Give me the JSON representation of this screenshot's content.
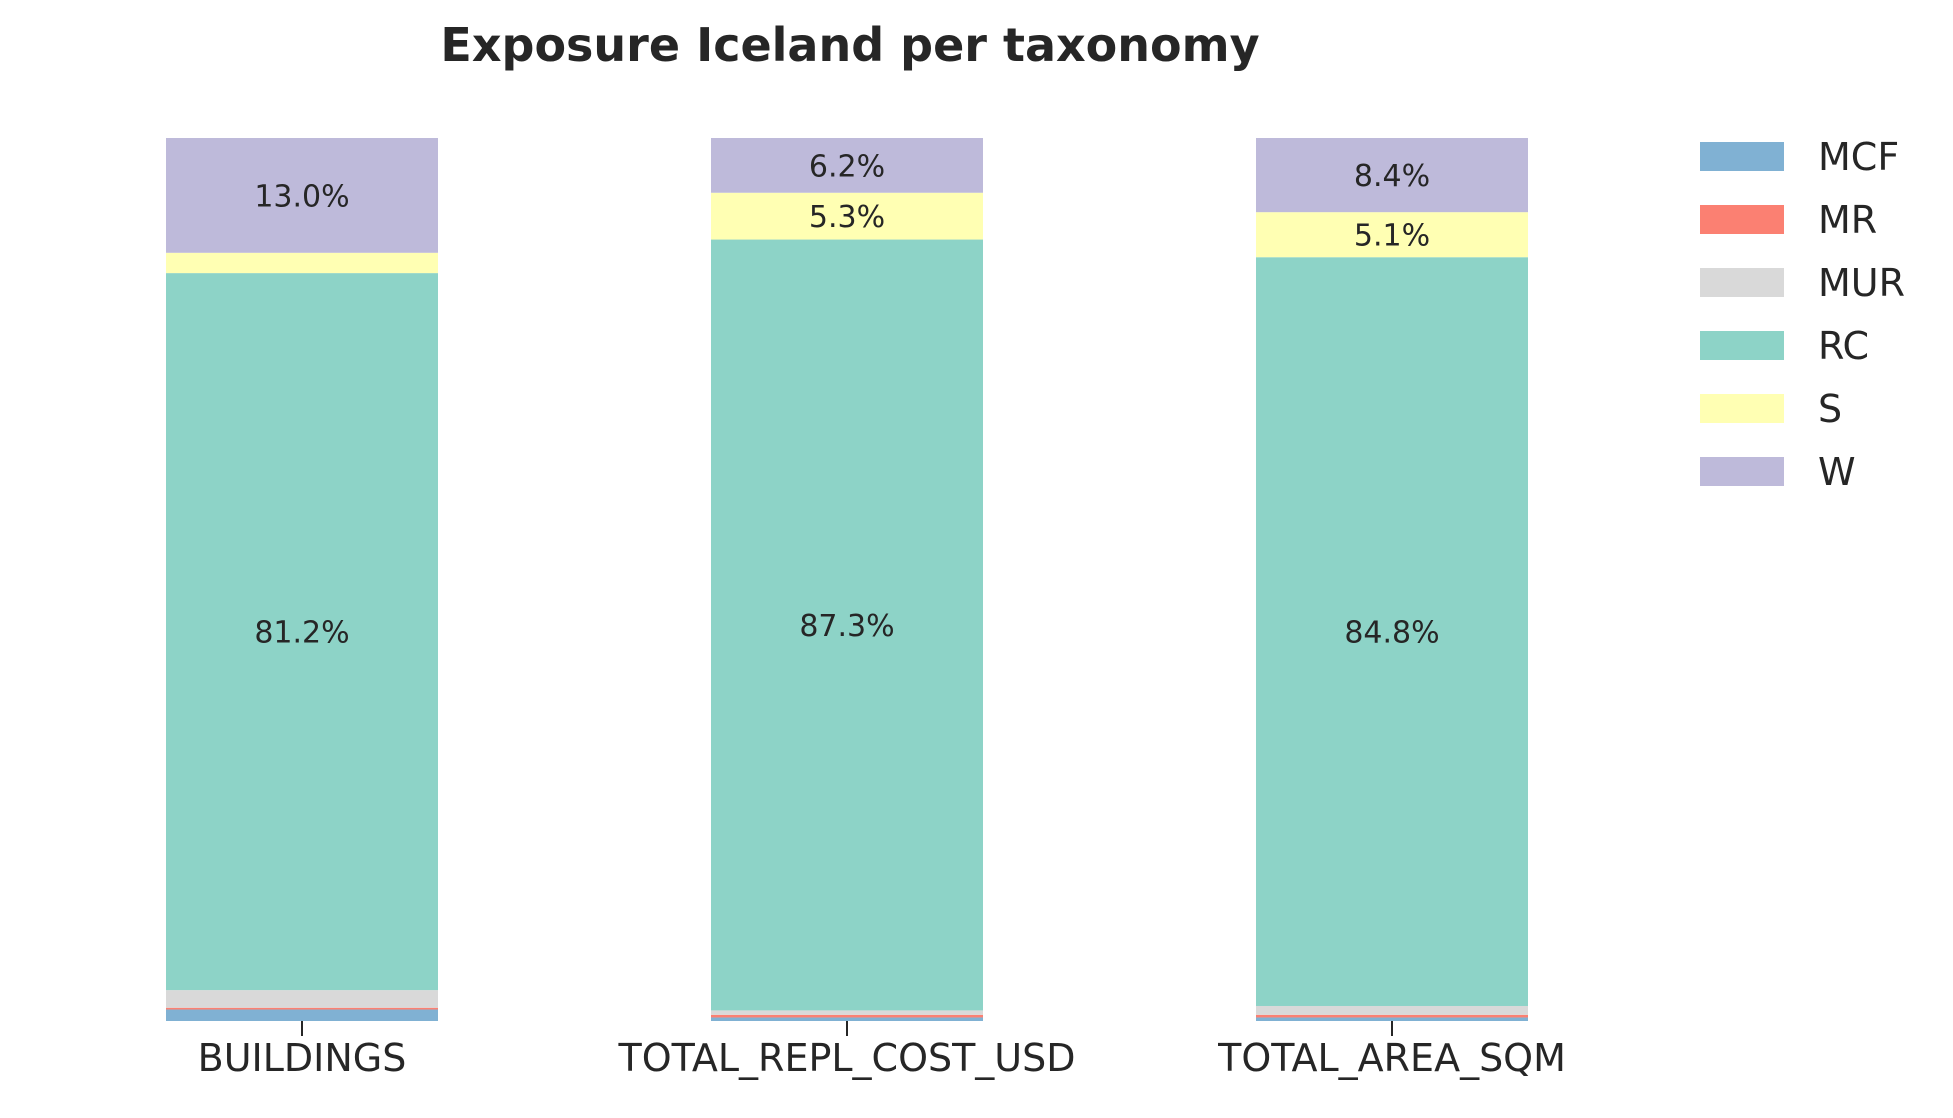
{
  "chart_data": {
    "type": "bar",
    "stacked": true,
    "percent_stacked": true,
    "title": "Exposure Iceland per taxonomy",
    "xlabel": "",
    "ylabel": "",
    "ylim": [
      0,
      100
    ],
    "grid": false,
    "legend": "right-top",
    "categories": [
      "BUILDINGS",
      "TOTAL_REPL_COST_USD",
      "TOTAL_AREA_SQM"
    ],
    "series": [
      {
        "name": "MCF",
        "color": "#80b1d3",
        "values": [
          1.3,
          0.4,
          0.4
        ],
        "labels": [
          "",
          "",
          ""
        ]
      },
      {
        "name": "MR",
        "color": "#fb8072",
        "values": [
          0.2,
          0.3,
          0.3
        ],
        "labels": [
          "",
          "",
          ""
        ]
      },
      {
        "name": "MUR",
        "color": "#d9d9d9",
        "values": [
          2.0,
          0.5,
          1.0
        ],
        "labels": [
          "",
          "",
          ""
        ]
      },
      {
        "name": "RC",
        "color": "#8dd3c7",
        "values": [
          81.2,
          87.3,
          84.8
        ],
        "labels": [
          "81.2%",
          "87.3%",
          "84.8%"
        ]
      },
      {
        "name": "S",
        "color": "#ffffb3",
        "values": [
          2.3,
          5.3,
          5.1
        ],
        "labels": [
          "",
          "5.3%",
          "5.1%"
        ]
      },
      {
        "name": "W",
        "color": "#bebada",
        "values": [
          13.0,
          6.2,
          8.4
        ],
        "labels": [
          "13.0%",
          "6.2%",
          "8.4%"
        ]
      }
    ]
  }
}
